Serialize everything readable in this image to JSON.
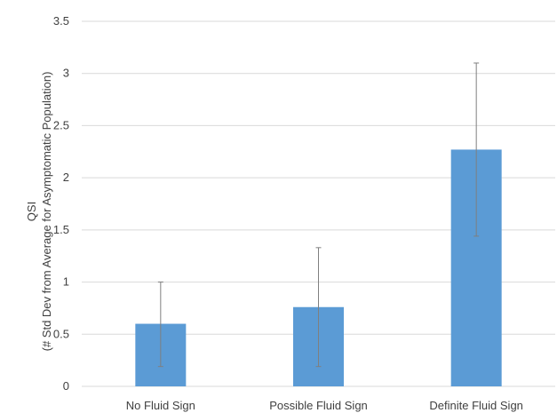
{
  "chart_data": {
    "type": "bar",
    "title": "",
    "xlabel": "",
    "ylabel": "QSI",
    "ylabel_line2": "(# Std Dev from Average for Asymptomatic Population)",
    "categories": [
      "No Fluid Sign",
      "Possible Fluid Sign",
      "Definite Fluid Sign"
    ],
    "values": [
      0.6,
      0.76,
      2.27
    ],
    "error_bars": [
      {
        "low": 0.19,
        "high": 1.0
      },
      {
        "low": 0.19,
        "high": 1.33
      },
      {
        "low": 1.44,
        "high": 3.1
      }
    ],
    "ylim": [
      0,
      3.5
    ],
    "yticks": [
      "0",
      "0.5",
      "1",
      "1.5",
      "2",
      "2.5",
      "3",
      "3.5"
    ],
    "grid": true,
    "legend": "none",
    "colors": {
      "bar": "#5b9bd5",
      "error_bar": "#7f7f7f",
      "grid": "#d9d9d9",
      "text": "#404040"
    }
  }
}
